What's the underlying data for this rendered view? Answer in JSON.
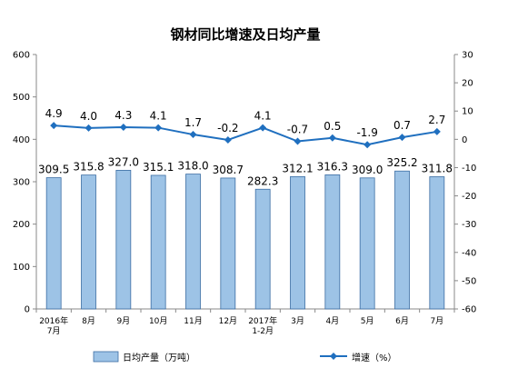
{
  "chart_data": {
    "type": "bar",
    "title": "钢材同比增速及日均产量",
    "categories": [
      [
        "2016年",
        "7月"
      ],
      [
        "8月"
      ],
      [
        "9月"
      ],
      [
        "10月"
      ],
      [
        "11月"
      ],
      [
        "12月"
      ],
      [
        "2017年",
        "1-2月"
      ],
      [
        "3月"
      ],
      [
        "4月"
      ],
      [
        "5月"
      ],
      [
        "6月"
      ],
      [
        "7月"
      ]
    ],
    "series": [
      {
        "name": "日均产量（万吨）",
        "type": "bar",
        "axis": "left",
        "color": "#9dc3e6",
        "values": [
          309.5,
          315.8,
          327.0,
          315.1,
          318.0,
          308.7,
          282.3,
          312.1,
          316.3,
          309.0,
          325.2,
          311.8
        ],
        "labels": [
          "309.5",
          "315.8",
          "327.0",
          "315.1",
          "318.0",
          "308.7",
          "282.3",
          "312.1",
          "316.3",
          "309.0",
          "325.2",
          "311.8"
        ]
      },
      {
        "name": "增速（%）",
        "type": "line",
        "axis": "right",
        "color": "#1f6fbf",
        "values": [
          4.9,
          4.0,
          4.3,
          4.1,
          1.7,
          -0.2,
          4.1,
          -0.7,
          0.5,
          -1.9,
          0.7,
          2.7
        ],
        "labels": [
          "4.9",
          "4.0",
          "4.3",
          "4.1",
          "1.7",
          "-0.2",
          "4.1",
          "-0.7",
          "0.5",
          "-1.9",
          "0.7",
          "2.7"
        ]
      }
    ],
    "y_left": {
      "min": 0,
      "max": 600,
      "step": 100,
      "ticks": [
        "0",
        "100",
        "200",
        "300",
        "400",
        "500",
        "600"
      ]
    },
    "y_right": {
      "min": -60,
      "max": 30,
      "step": 10,
      "ticks": [
        "-60",
        "-50",
        "-40",
        "-30",
        "-20",
        "-10",
        "0",
        "10",
        "20",
        "30"
      ]
    },
    "grid": false,
    "legend_position": "bottom"
  }
}
